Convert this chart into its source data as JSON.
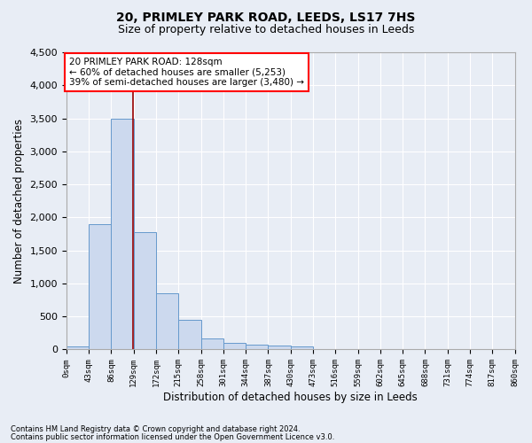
{
  "title": "20, PRIMLEY PARK ROAD, LEEDS, LS17 7HS",
  "subtitle": "Size of property relative to detached houses in Leeds",
  "xlabel": "Distribution of detached houses by size in Leeds",
  "ylabel": "Number of detached properties",
  "footnote1": "Contains HM Land Registry data © Crown copyright and database right 2024.",
  "footnote2": "Contains public sector information licensed under the Open Government Licence v3.0.",
  "annotation_line1": "20 PRIMLEY PARK ROAD: 128sqm",
  "annotation_line2": "← 60% of detached houses are smaller (5,253)",
  "annotation_line3": "39% of semi-detached houses are larger (3,480) →",
  "property_sqm": 128,
  "bin_edges": [
    0,
    43,
    86,
    129,
    172,
    215,
    258,
    301,
    344,
    387,
    430,
    473,
    516,
    559,
    602,
    645,
    688,
    731,
    774,
    817,
    860
  ],
  "bar_heights": [
    50,
    1900,
    3500,
    1780,
    850,
    450,
    165,
    100,
    75,
    55,
    40,
    0,
    0,
    0,
    0,
    0,
    0,
    0,
    0,
    0
  ],
  "bar_color": "#ccd9ee",
  "bar_edge_color": "#6699cc",
  "vline_color": "#990000",
  "vline_x": 128,
  "ylim": [
    0,
    4500
  ],
  "yticks": [
    0,
    500,
    1000,
    1500,
    2000,
    2500,
    3000,
    3500,
    4000,
    4500
  ],
  "bg_color": "#e8edf5",
  "plot_bg_color": "#e8edf5",
  "grid_color": "#ffffff",
  "title_fontsize": 10,
  "subtitle_fontsize": 9
}
